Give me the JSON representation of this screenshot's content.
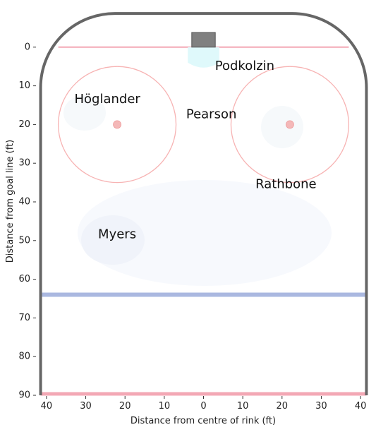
{
  "chart_data": {
    "type": "scatter",
    "title": "",
    "xlabel": "Distance from centre of rink (ft)",
    "ylabel": "Distance from goal line (ft)",
    "xlim": [
      42.5,
      -42.5
    ],
    "ylim": [
      -10,
      90
    ],
    "x_ticks": [
      40,
      30,
      20,
      10,
      0,
      -10,
      -20,
      -30,
      -40
    ],
    "x_tick_labels": [
      "40",
      "30",
      "20",
      "10",
      "0",
      "10",
      "20",
      "30",
      "40"
    ],
    "y_ticks": [
      0,
      10,
      20,
      30,
      40,
      50,
      60,
      70,
      80,
      90
    ],
    "y_tick_labels": [
      "0",
      "10",
      "20",
      "30",
      "40",
      "50",
      "60",
      "70",
      "80",
      "90"
    ],
    "grid": false,
    "points": [
      {
        "label": "Podkolzin",
        "x": -10.5,
        "y": 5
      },
      {
        "label": "Höglander",
        "x": 24.5,
        "y": 13.5
      },
      {
        "label": "Pearson",
        "x": -2,
        "y": 17.5
      },
      {
        "label": "Rathbone",
        "x": -21,
        "y": 35.5
      },
      {
        "label": "Myers",
        "x": 22,
        "y": 48.5
      }
    ],
    "rink": {
      "goal_line_y": 0,
      "blue_line_y": 64,
      "far_line_y": 90,
      "faceoff_circle_radius_ft": 15,
      "faceoff_centres": [
        {
          "x": 22,
          "y": 20
        },
        {
          "x": -22,
          "y": 20
        }
      ],
      "colors": {
        "boards": "#666666",
        "goal_line": "#f3a8b5",
        "blue_line": "#aab8e0",
        "red_line": "#f3a8b5",
        "faceoff": "#f7b3b3",
        "faceoff_dot": "#f4b8b8",
        "crease": "#dff9fb",
        "net": "#808080",
        "heat": "#f2f5fb"
      }
    }
  }
}
